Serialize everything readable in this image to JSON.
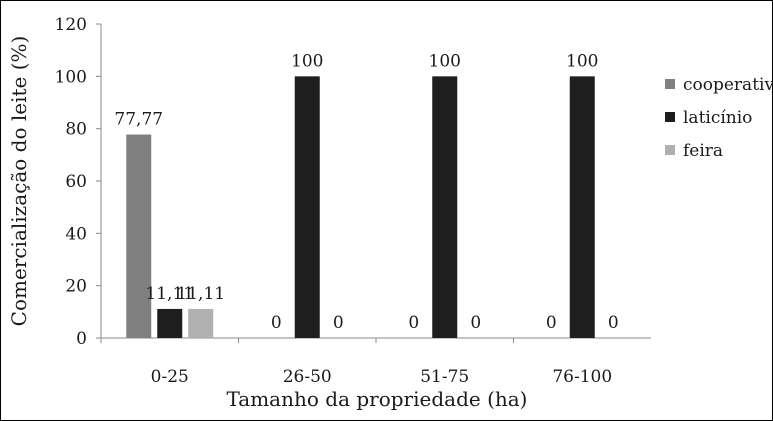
{
  "chart_data": {
    "type": "bar",
    "xlabel": "Tamanho da propriedade (ha)",
    "ylabel": "Comercialização do leite (%)",
    "ylim": [
      0,
      120
    ],
    "yticks": [
      "0",
      "20",
      "40",
      "60",
      "80",
      "100",
      "120"
    ],
    "grid": false,
    "legend_position": "right",
    "categories": [
      "0-25",
      "26-50",
      "51-75",
      "76-100"
    ],
    "series": [
      {
        "name": "cooperativa",
        "color": "#808080",
        "values": [
          77.77,
          0,
          0,
          0
        ],
        "labels": [
          "77,77",
          "0",
          "0",
          "0"
        ]
      },
      {
        "name": "laticínio",
        "color": "#1e1e1e",
        "values": [
          11.11,
          100,
          100,
          100
        ],
        "labels": [
          "11,11",
          "100",
          "100",
          "100"
        ]
      },
      {
        "name": "feira",
        "color": "#b0b0b0",
        "values": [
          11.11,
          0,
          0,
          0
        ],
        "labels": [
          "11,11",
          "0",
          "0",
          "0"
        ]
      }
    ]
  }
}
